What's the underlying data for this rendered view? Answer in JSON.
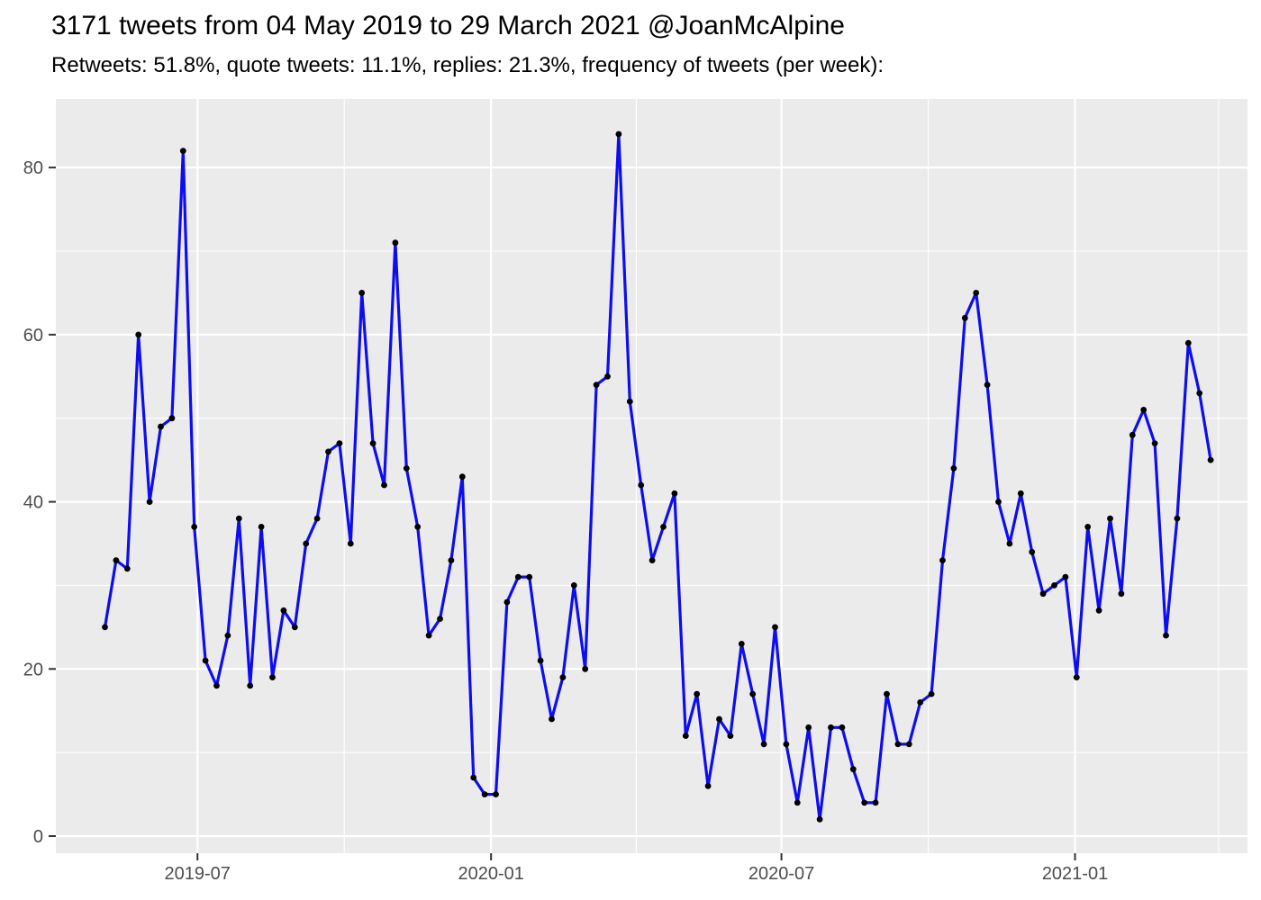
{
  "header": {
    "title": "3171 tweets from 04 May 2019 to 29 March 2021 @JoanMcAlpine",
    "subtitle": "Retweets: 51.8%, quote tweets: 11.1%, replies: 21.3%, frequency of tweets (per week):"
  },
  "chart_data": {
    "type": "line",
    "title": "3171 tweets from 04 May 2019 to 29 March 2021 @JoanMcAlpine",
    "subtitle": "Retweets: 51.8%, quote tweets: 11.1%, replies: 21.3%, frequency of tweets (per week):",
    "xlabel": "",
    "ylabel": "",
    "legend": "none",
    "grid": true,
    "x_unit": "week",
    "x_start_date": "2019-05-04",
    "x_step_days": 7,
    "x": [
      "2019-05-04",
      "2019-05-11",
      "2019-05-18",
      "2019-05-25",
      "2019-06-01",
      "2019-06-08",
      "2019-06-15",
      "2019-06-22",
      "2019-06-29",
      "2019-07-06",
      "2019-07-13",
      "2019-07-20",
      "2019-07-27",
      "2019-08-03",
      "2019-08-10",
      "2019-08-17",
      "2019-08-24",
      "2019-08-31",
      "2019-09-07",
      "2019-09-14",
      "2019-09-21",
      "2019-09-28",
      "2019-10-05",
      "2019-10-12",
      "2019-10-19",
      "2019-10-26",
      "2019-11-02",
      "2019-11-09",
      "2019-11-16",
      "2019-11-23",
      "2019-11-30",
      "2019-12-07",
      "2019-12-14",
      "2019-12-21",
      "2019-12-28",
      "2020-01-04",
      "2020-01-11",
      "2020-01-18",
      "2020-01-25",
      "2020-02-01",
      "2020-02-08",
      "2020-02-15",
      "2020-02-22",
      "2020-02-29",
      "2020-03-07",
      "2020-03-14",
      "2020-03-21",
      "2020-03-28",
      "2020-04-04",
      "2020-04-11",
      "2020-04-18",
      "2020-04-25",
      "2020-05-02",
      "2020-05-09",
      "2020-05-16",
      "2020-05-23",
      "2020-05-30",
      "2020-06-06",
      "2020-06-13",
      "2020-06-20",
      "2020-06-27",
      "2020-07-04",
      "2020-07-11",
      "2020-07-18",
      "2020-07-25",
      "2020-08-01",
      "2020-08-08",
      "2020-08-15",
      "2020-08-22",
      "2020-08-29",
      "2020-09-05",
      "2020-09-12",
      "2020-09-19",
      "2020-09-26",
      "2020-10-03",
      "2020-10-10",
      "2020-10-17",
      "2020-10-24",
      "2020-10-31",
      "2020-11-07",
      "2020-11-14",
      "2020-11-21",
      "2020-11-28",
      "2020-12-05",
      "2020-12-12",
      "2020-12-19",
      "2020-12-26",
      "2021-01-02",
      "2021-01-09",
      "2021-01-16",
      "2021-01-23",
      "2021-01-30",
      "2021-02-06",
      "2021-02-13",
      "2021-02-20",
      "2021-02-27",
      "2021-03-06",
      "2021-03-13",
      "2021-03-20",
      "2021-03-27"
    ],
    "values": [
      25,
      33,
      32,
      60,
      40,
      49,
      50,
      82,
      37,
      21,
      18,
      24,
      38,
      18,
      37,
      19,
      27,
      25,
      35,
      38,
      46,
      47,
      35,
      65,
      47,
      42,
      71,
      44,
      37,
      24,
      26,
      33,
      43,
      7,
      5,
      5,
      28,
      31,
      31,
      21,
      14,
      19,
      30,
      20,
      54,
      55,
      84,
      52,
      42,
      33,
      37,
      41,
      12,
      17,
      6,
      14,
      12,
      23,
      17,
      11,
      25,
      11,
      4,
      13,
      2,
      13,
      13,
      8,
      4,
      4,
      17,
      11,
      11,
      16,
      17,
      33,
      44,
      62,
      65,
      54,
      40,
      35,
      41,
      34,
      29,
      30,
      31,
      19,
      37,
      27,
      38,
      29,
      48,
      51,
      47,
      24,
      38,
      59,
      53,
      45
    ],
    "values_total": 3171,
    "ylim": [
      0,
      88
    ],
    "y_ticks": [
      0,
      20,
      40,
      60,
      80
    ],
    "y_minor_ticks": [
      10,
      30,
      50,
      70
    ],
    "x_ticks": [
      {
        "label": "2019-07",
        "date": "2019-07-01"
      },
      {
        "label": "2020-01",
        "date": "2020-01-01"
      },
      {
        "label": "2020-07",
        "date": "2020-07-01"
      },
      {
        "label": "2021-01",
        "date": "2021-01-01"
      }
    ],
    "x_minor_tick_dates": [
      "2019-10-01",
      "2020-04-01",
      "2020-10-01",
      "2021-04-01"
    ],
    "colors": {
      "line": "#0D0DF0",
      "point": "#000000",
      "panel_background": "#EBEBEB",
      "gridline": "#FFFFFF",
      "tick_mark": "#333333",
      "tick_label": "#4D4D4D",
      "title_text": "#000000",
      "page_background": "#FFFFFF"
    }
  }
}
